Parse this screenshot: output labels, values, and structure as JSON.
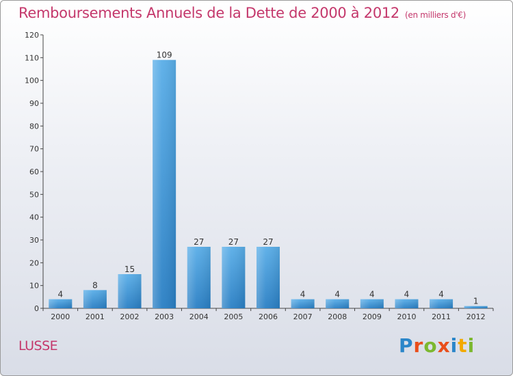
{
  "header": {
    "title": "Remboursements Annuels de la Dette de 2000 à 2012",
    "subtitle": "(en milliers d'€)"
  },
  "footer": {
    "commune": "LUSSE",
    "logo_text": "Proxiti"
  },
  "colors": {
    "bar_top": "#5aaee8",
    "bar_bottom": "#2a7fc4",
    "title": "#c4376b"
  },
  "chart_data": {
    "type": "bar",
    "title": "Remboursements Annuels de la Dette de 2000 à 2012",
    "subtitle": "(en milliers d'€)",
    "xlabel": "",
    "ylabel": "",
    "categories": [
      "2000",
      "2001",
      "2002",
      "2003",
      "2004",
      "2005",
      "2006",
      "2007",
      "2008",
      "2009",
      "2010",
      "2011",
      "2012"
    ],
    "values": [
      4,
      8,
      15,
      109,
      27,
      27,
      27,
      4,
      4,
      4,
      4,
      4,
      1
    ],
    "ylim": [
      0,
      120
    ],
    "yticks": [
      0,
      10,
      20,
      30,
      40,
      50,
      60,
      70,
      80,
      90,
      100,
      110,
      120
    ],
    "grid": false,
    "legend": "none"
  }
}
